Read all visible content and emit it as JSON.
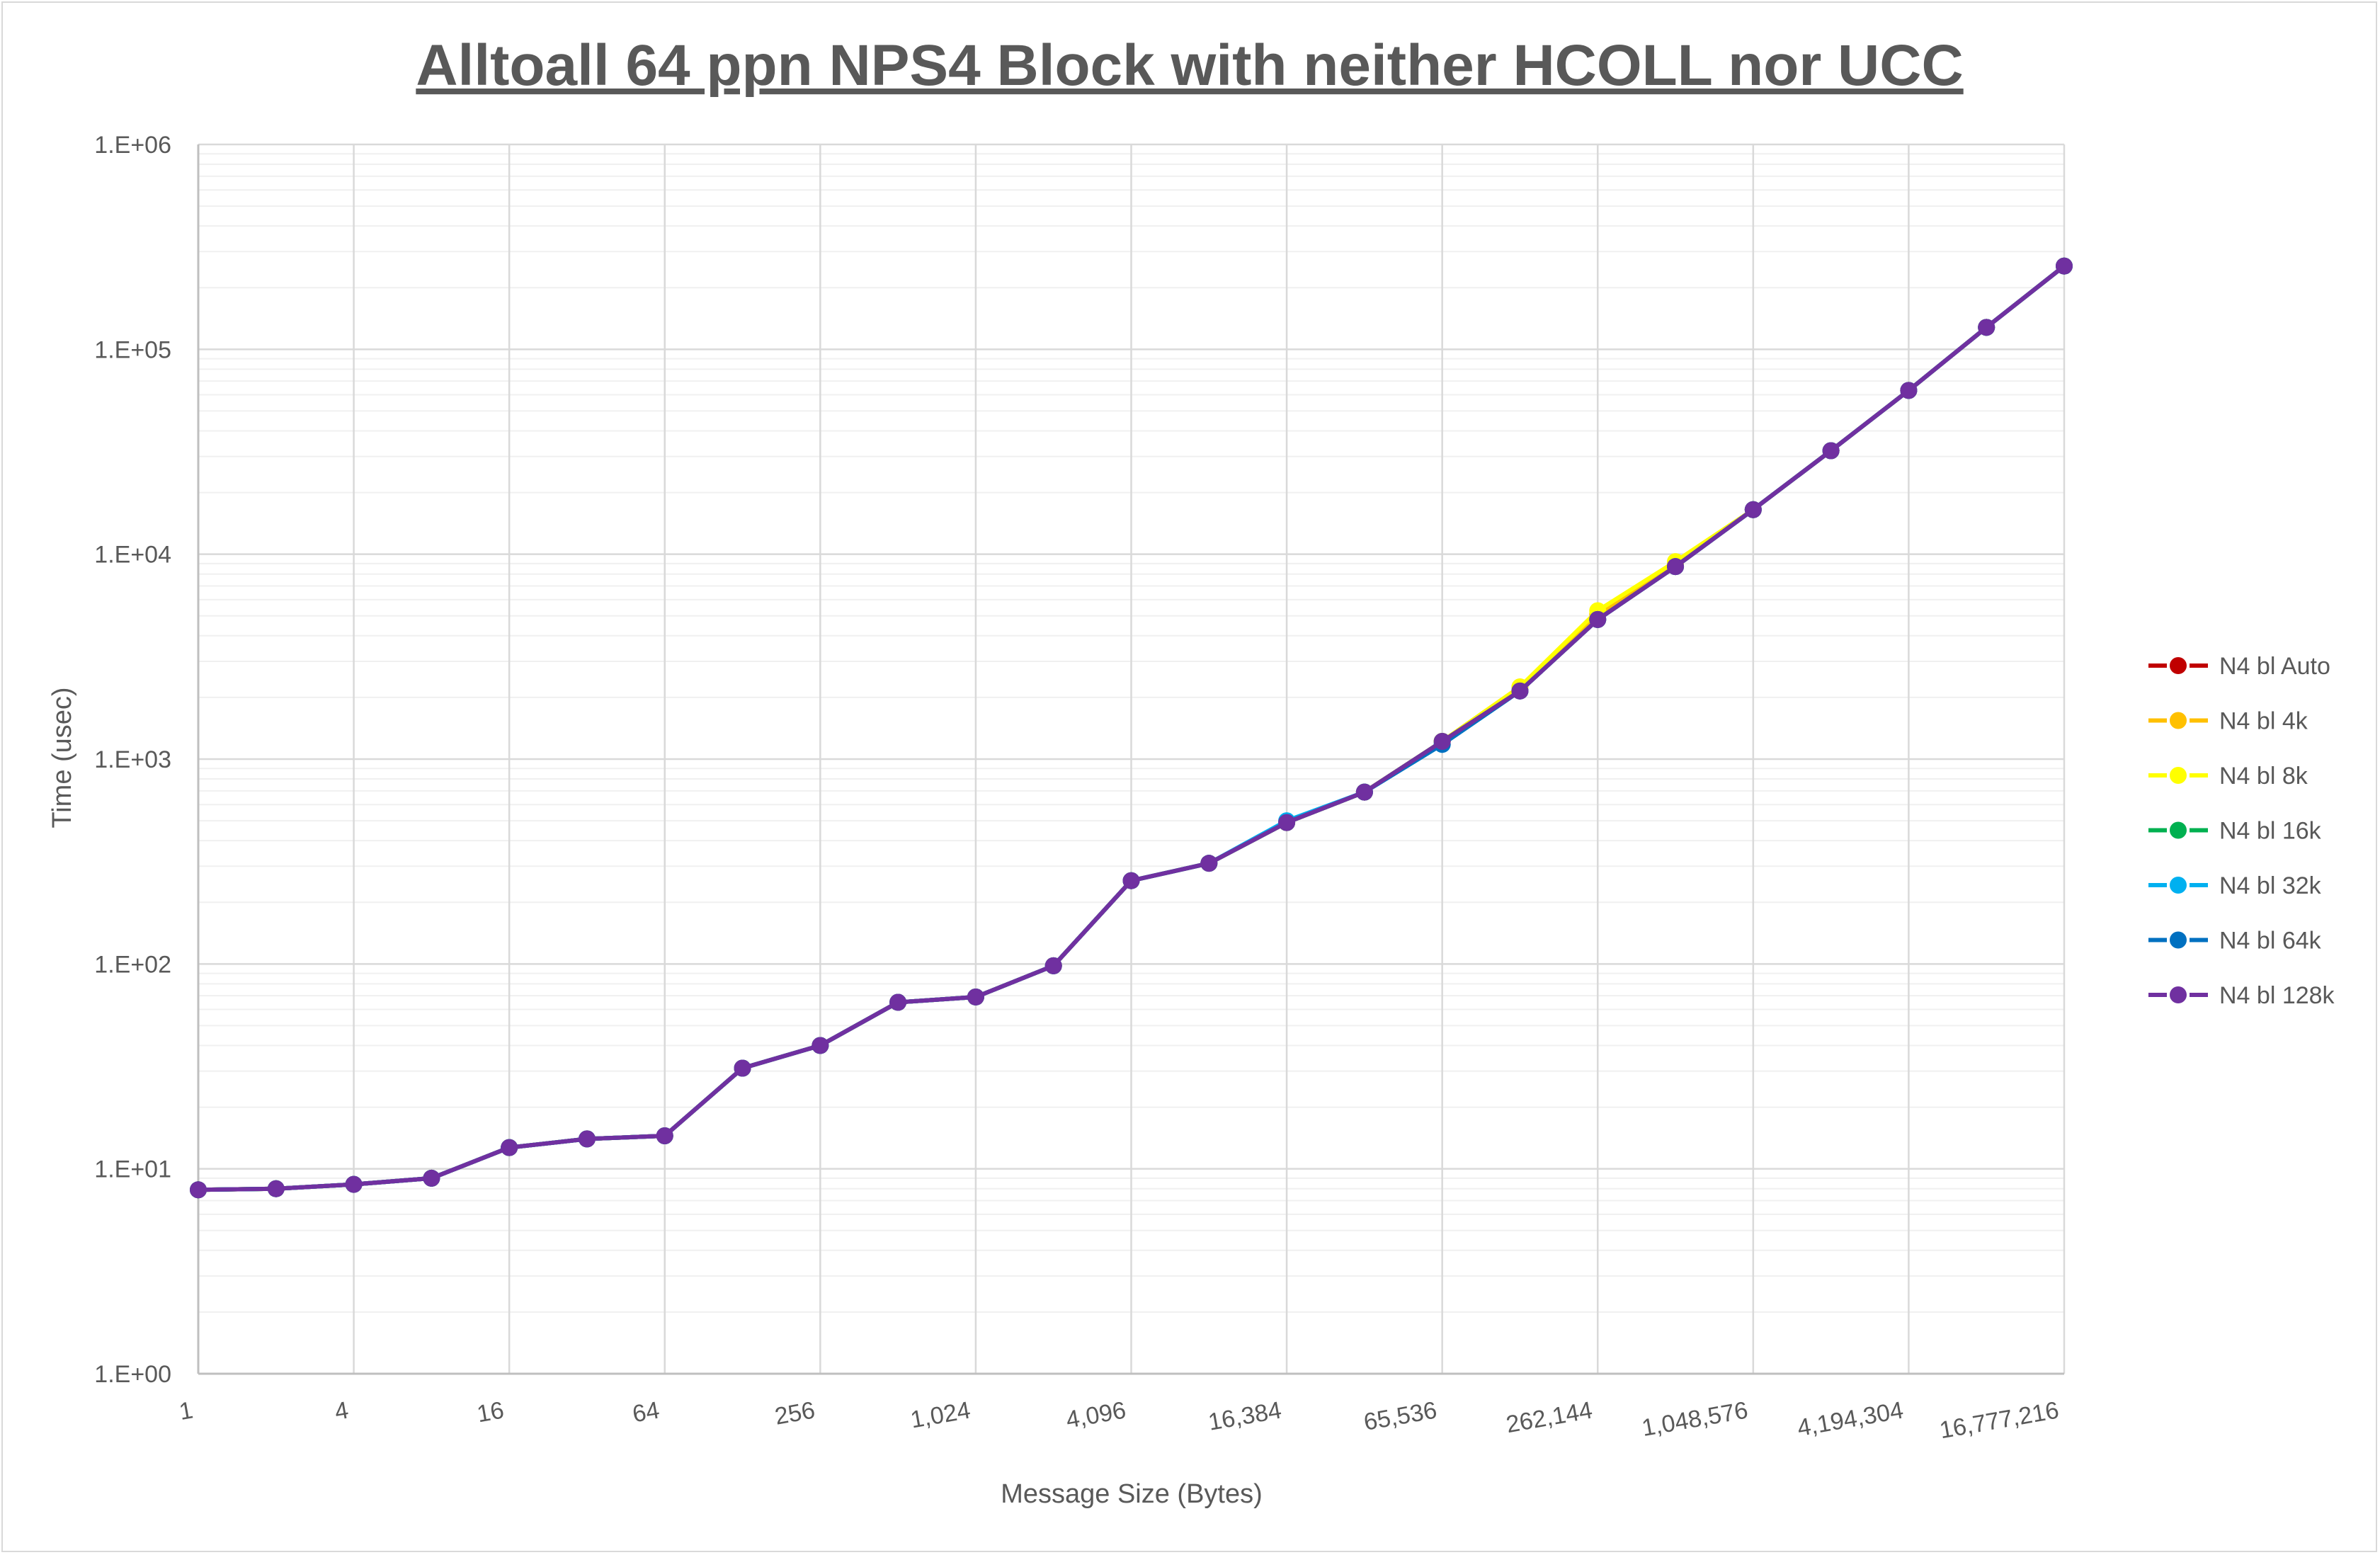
{
  "chart_data": {
    "type": "line",
    "title": "Alltoall 64 ppn NPS4 Block with neither HCOLL nor UCC",
    "xlabel": "Message Size (Bytes)",
    "ylabel": "Time (usec)",
    "x_scale": "log2",
    "y_scale": "log10",
    "xlim": [
      1,
      16777216
    ],
    "ylim": [
      1,
      1000000
    ],
    "grid": true,
    "legend_position": "right",
    "x": [
      1,
      2,
      4,
      8,
      16,
      32,
      64,
      128,
      256,
      512,
      1024,
      2048,
      4096,
      8192,
      16384,
      32768,
      65536,
      131072,
      262144,
      524288,
      1048576,
      2097152,
      4194304,
      8388608,
      16777216
    ],
    "x_tick_values": [
      1,
      4,
      16,
      64,
      256,
      1024,
      4096,
      16384,
      65536,
      262144,
      1048576,
      4194304,
      16777216
    ],
    "x_tick_labels": [
      "1",
      "4",
      "16",
      "64",
      "256",
      "1,024",
      "4,096",
      "16,384",
      "65,536",
      "262,144",
      "1,048,576",
      "4,194,304",
      "16,777,216"
    ],
    "y_tick_values": [
      1,
      10,
      100,
      1000,
      10000,
      100000,
      1000000
    ],
    "y_tick_labels": [
      "1.E+00",
      "1.E+01",
      "1.E+02",
      "1.E+03",
      "1.E+04",
      "1.E+05",
      "1.E+06"
    ],
    "series": [
      {
        "name": "N4 bl Auto",
        "color": "#c00000",
        "values": [
          7.9,
          8.0,
          8.4,
          9.0,
          12.7,
          14.0,
          14.5,
          31,
          40,
          65,
          69,
          98,
          255,
          310,
          490,
          690,
          1220,
          2150,
          4800,
          8700,
          16500,
          32000,
          63000,
          128000,
          255000
        ]
      },
      {
        "name": "N4 bl 4k",
        "color": "#ffc000",
        "values": [
          7.9,
          8.0,
          8.4,
          9.0,
          12.7,
          14.0,
          14.5,
          31,
          40,
          65,
          69,
          98,
          255,
          310,
          490,
          690,
          1220,
          2250,
          5100,
          8900,
          16500,
          32000,
          63000,
          128000,
          255000
        ]
      },
      {
        "name": "N4 bl 8k",
        "color": "#ffff00",
        "values": [
          7.9,
          8.0,
          8.4,
          9.0,
          12.7,
          14.0,
          14.5,
          31,
          40,
          65,
          69,
          98,
          255,
          310,
          490,
          690,
          1220,
          2250,
          5300,
          9200,
          16500,
          32000,
          63000,
          128000,
          255000
        ]
      },
      {
        "name": "N4 bl 16k",
        "color": "#00b050",
        "values": [
          7.9,
          8.0,
          8.4,
          9.0,
          12.7,
          14.0,
          14.5,
          31,
          40,
          65,
          69,
          98,
          255,
          310,
          490,
          690,
          1220,
          2150,
          4800,
          8700,
          16500,
          32000,
          63000,
          128000,
          255000
        ]
      },
      {
        "name": "N4 bl 32k",
        "color": "#00b0f0",
        "values": [
          7.9,
          8.0,
          8.4,
          9.0,
          12.7,
          14.0,
          14.5,
          31,
          40,
          65,
          69,
          98,
          255,
          310,
          500,
          690,
          1180,
          2150,
          4800,
          8700,
          16500,
          32000,
          63000,
          128000,
          255000
        ]
      },
      {
        "name": "N4 bl 64k",
        "color": "#0070c0",
        "values": [
          7.9,
          8.0,
          8.4,
          9.0,
          12.7,
          14.0,
          14.5,
          31,
          40,
          65,
          69,
          98,
          255,
          310,
          490,
          690,
          1180,
          2150,
          4800,
          8700,
          16500,
          32000,
          63000,
          128000,
          255000
        ]
      },
      {
        "name": "N4 bl 128k",
        "color": "#7030a0",
        "values": [
          7.9,
          8.0,
          8.4,
          9.0,
          12.7,
          14.0,
          14.5,
          31,
          40,
          65,
          69,
          98,
          255,
          310,
          490,
          690,
          1220,
          2150,
          4800,
          8700,
          16500,
          32000,
          63000,
          128000,
          255000
        ]
      }
    ]
  }
}
